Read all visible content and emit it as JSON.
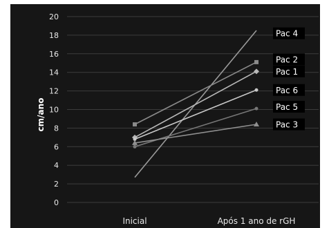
{
  "chart_data": {
    "type": "line",
    "title": "",
    "xlabel": "",
    "ylabel": "cm/ano",
    "categories": [
      "Inicial",
      "Após 1 ano de rGH"
    ],
    "ylim": [
      0,
      20
    ],
    "yticks": [
      "0",
      "2",
      "4",
      "6",
      "8",
      "10",
      "12",
      "14",
      "16",
      "18",
      "20"
    ],
    "grid": true,
    "legend": "none",
    "series": [
      {
        "name": "Pac 4",
        "values": [
          2.7,
          18.5
        ],
        "color": "#9a9a9a",
        "marker": "none"
      },
      {
        "name": "Pac 2",
        "values": [
          8.4,
          15.1
        ],
        "color": "#8a8a8a",
        "marker": "square"
      },
      {
        "name": "Pac 1",
        "values": [
          7.0,
          14.1
        ],
        "color": "#b8b8b8",
        "marker": "diamond"
      },
      {
        "name": "Pac 6",
        "values": [
          6.8,
          12.1
        ],
        "color": "#c8c8c8",
        "marker": "circle"
      },
      {
        "name": "Pac 5",
        "values": [
          6.0,
          10.1
        ],
        "color": "#777777",
        "marker": "circle"
      },
      {
        "name": "Pac 3",
        "values": [
          6.4,
          8.4
        ],
        "color": "#909090",
        "marker": "triangle"
      }
    ],
    "series_label_order": [
      "Pac 4",
      "Pac 2",
      "Pac 1",
      "Pac 6",
      "Pac 5",
      "Pac 3"
    ],
    "series_label_positions_y": [
      18.2,
      15.4,
      14.1,
      12.1,
      10.3,
      8.4
    ]
  }
}
